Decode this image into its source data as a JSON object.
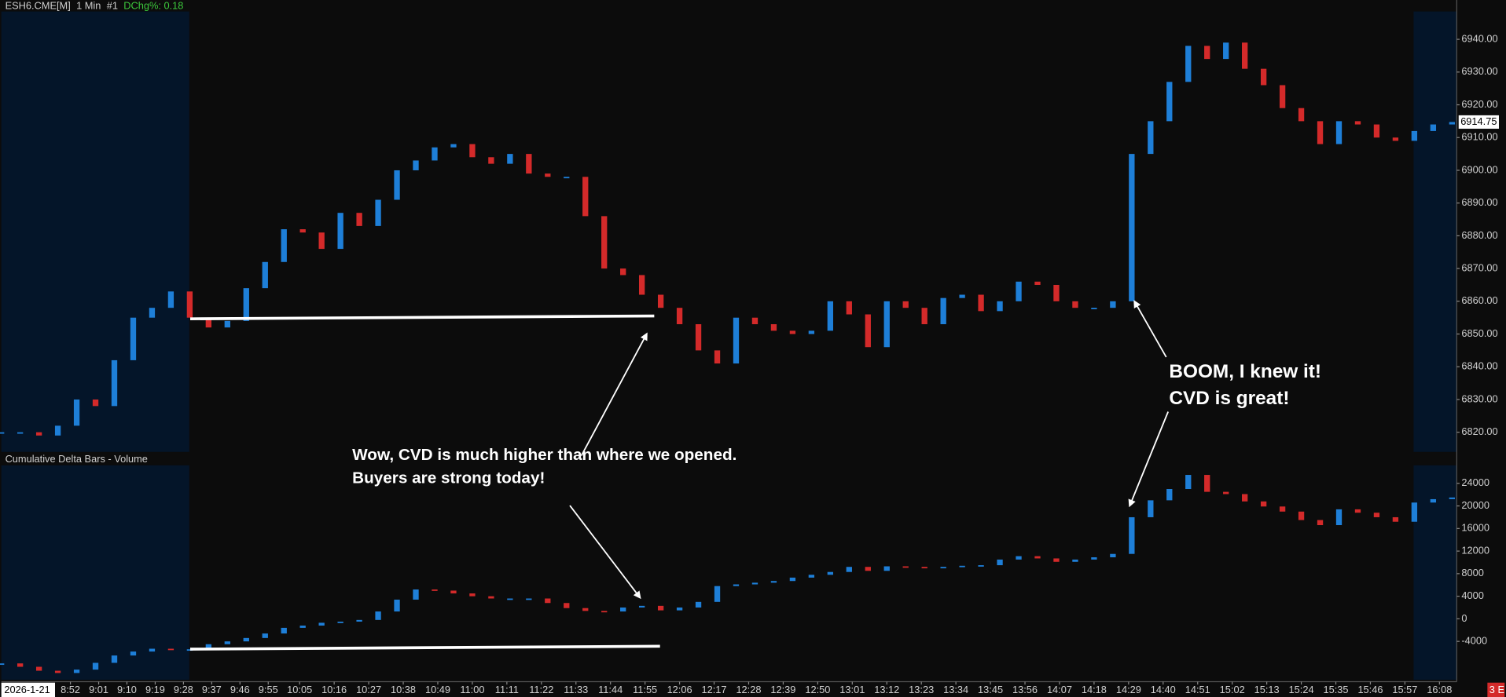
{
  "header": {
    "symbol": "ESH6.CME[M]",
    "interval": "1 Min",
    "chart_no": "#1",
    "change": "DChg%: 0.18",
    "corner": "3 E"
  },
  "annotations": [
    "Wow, CVD is much higher than where we opened.",
    "Buyers are strong today!",
    "BOOM, I knew it!",
    "CVD is great!"
  ],
  "chart_data": [
    {
      "type": "candlestick",
      "colors": {
        "up": "#1e7fd8",
        "down": "#d42a2a"
      },
      "grid": false,
      "x": [
        510,
        516,
        522,
        528,
        534,
        540,
        546,
        552,
        558,
        564,
        570,
        576,
        582,
        588,
        594,
        600,
        606,
        612,
        618,
        624,
        630,
        636,
        642,
        648,
        654,
        660,
        666,
        672,
        678,
        684,
        690,
        696,
        702,
        708,
        714,
        720,
        726,
        732,
        738,
        744,
        750,
        756,
        762,
        768,
        774,
        780,
        786,
        792,
        798,
        804,
        810,
        816,
        822,
        828,
        834,
        840,
        846,
        852,
        858,
        864,
        870,
        876,
        882,
        888,
        894,
        900,
        906,
        912,
        918,
        924,
        930,
        936,
        942,
        948,
        954,
        960,
        966,
        972
      ],
      "values": [
        6820,
        6820,
        6819,
        6822,
        6830,
        6828,
        6842,
        6855,
        6858,
        6863,
        6855,
        6852,
        6854,
        6864,
        6872,
        6882,
        6881,
        6876,
        6887,
        6883,
        6891,
        6900,
        6903,
        6907,
        6908,
        6904,
        6902,
        6905,
        6899,
        6898,
        6898,
        6886,
        6870,
        6868,
        6862,
        6858,
        6853,
        6845,
        6841,
        6855,
        6853,
        6851,
        6850,
        6851,
        6860,
        6856,
        6846,
        6860,
        6858,
        6853,
        6861,
        6862,
        6857,
        6860,
        6866,
        6865,
        6860,
        6858,
        6858,
        6860,
        6905,
        6915,
        6927,
        6938,
        6934,
        6939,
        6931,
        6926,
        6919,
        6915,
        6908,
        6915,
        6914,
        6910,
        6909,
        6912,
        6914,
        6914.75
      ],
      "ylim": [
        6814,
        6948.5
      ],
      "yticks": [
        {
          "value": 6820,
          "label": "6820.00"
        },
        {
          "value": 6830,
          "label": "6830.00"
        },
        {
          "value": 6840,
          "label": "6840.00"
        },
        {
          "value": 6850,
          "label": "6850.00"
        },
        {
          "value": 6860,
          "label": "6860.00"
        },
        {
          "value": 6870,
          "label": "6870.00"
        },
        {
          "value": 6880,
          "label": "6880.00"
        },
        {
          "value": 6890,
          "label": "6890.00"
        },
        {
          "value": 6900,
          "label": "6900.00"
        },
        {
          "value": 6910,
          "label": "6910.00"
        },
        {
          "value": 6920,
          "label": "6920.00"
        },
        {
          "value": 6930,
          "label": "6930.00"
        },
        {
          "value": 6940,
          "label": "6940.00"
        }
      ],
      "last_price": 6914.75,
      "xlim": [
        510,
        973.5
      ]
    },
    {
      "type": "candlestick",
      "title": "Cumulative Delta Bars - Volume",
      "colors": {
        "up": "#1e7fd8",
        "down": "#d42a2a"
      },
      "grid": false,
      "x": [
        510,
        516,
        522,
        528,
        534,
        540,
        546,
        552,
        558,
        564,
        570,
        576,
        582,
        588,
        594,
        600,
        606,
        612,
        618,
        624,
        630,
        636,
        642,
        648,
        654,
        660,
        666,
        672,
        678,
        684,
        690,
        696,
        702,
        708,
        714,
        720,
        726,
        732,
        738,
        744,
        750,
        756,
        762,
        768,
        774,
        780,
        786,
        792,
        798,
        804,
        810,
        816,
        822,
        828,
        834,
        840,
        846,
        852,
        858,
        864,
        870,
        876,
        882,
        888,
        894,
        900,
        906,
        912,
        918,
        924,
        930,
        936,
        942,
        948,
        954,
        960,
        966,
        972
      ],
      "values": [
        -7900,
        -8500,
        -9200,
        -9600,
        -9000,
        -7800,
        -6500,
        -5800,
        -5300,
        -5400,
        -5400,
        -4500,
        -4000,
        -3400,
        -2600,
        -1600,
        -1200,
        -700,
        -500,
        -200,
        1300,
        3400,
        5200,
        5000,
        4500,
        4000,
        3600,
        3600,
        3600,
        2800,
        1900,
        1400,
        1300,
        2000,
        2300,
        1500,
        2000,
        3000,
        5800,
        6100,
        6400,
        6700,
        7300,
        7800,
        8300,
        9200,
        8500,
        9300,
        9200,
        9000,
        9200,
        9400,
        9500,
        10500,
        11100,
        10700,
        10100,
        10500,
        10900,
        11500,
        18000,
        21000,
        23000,
        25500,
        22500,
        22100,
        20800,
        19900,
        19000,
        17500,
        16600,
        19400,
        18800,
        18000,
        17200,
        20600,
        21200,
        21500
      ],
      "ylim": [
        -10800,
        27200
      ],
      "yticks": [
        -4000,
        0,
        4000,
        8000,
        12000,
        16000,
        20000,
        24000
      ],
      "xlim": [
        510,
        973.5
      ],
      "date_label": "2026-1-21",
      "xticks": [
        {
          "value": 532,
          "label": "8:52"
        },
        {
          "value": 541,
          "label": "9:01"
        },
        {
          "value": 550,
          "label": "9:10"
        },
        {
          "value": 559,
          "label": "9:19"
        },
        {
          "value": 568,
          "label": "9:28"
        },
        {
          "value": 577,
          "label": "9:37"
        },
        {
          "value": 586,
          "label": "9:46"
        },
        {
          "value": 595,
          "label": "9:55"
        },
        {
          "value": 605,
          "label": "10:05"
        },
        {
          "value": 616,
          "label": "10:16"
        },
        {
          "value": 627,
          "label": "10:27"
        },
        {
          "value": 638,
          "label": "10:38"
        },
        {
          "value": 649,
          "label": "10:49"
        },
        {
          "value": 660,
          "label": "11:00"
        },
        {
          "value": 671,
          "label": "11:11"
        },
        {
          "value": 682,
          "label": "11:22"
        },
        {
          "value": 693,
          "label": "11:33"
        },
        {
          "value": 704,
          "label": "11:44"
        },
        {
          "value": 715,
          "label": "11:55"
        },
        {
          "value": 726,
          "label": "12:06"
        },
        {
          "value": 737,
          "label": "12:17"
        },
        {
          "value": 748,
          "label": "12:28"
        },
        {
          "value": 759,
          "label": "12:39"
        },
        {
          "value": 770,
          "label": "12:50"
        },
        {
          "value": 781,
          "label": "13:01"
        },
        {
          "value": 792,
          "label": "13:12"
        },
        {
          "value": 803,
          "label": "13:23"
        },
        {
          "value": 814,
          "label": "13:34"
        },
        {
          "value": 825,
          "label": "13:45"
        },
        {
          "value": 836,
          "label": "13:56"
        },
        {
          "value": 847,
          "label": "14:07"
        },
        {
          "value": 858,
          "label": "14:18"
        },
        {
          "value": 869,
          "label": "14:29"
        },
        {
          "value": 880,
          "label": "14:40"
        },
        {
          "value": 891,
          "label": "14:51"
        },
        {
          "value": 902,
          "label": "15:02"
        },
        {
          "value": 913,
          "label": "15:13"
        },
        {
          "value": 924,
          "label": "15:24"
        },
        {
          "value": 935,
          "label": "15:35"
        },
        {
          "value": 946,
          "label": "15:46"
        },
        {
          "value": 957,
          "label": "15:57"
        },
        {
          "value": 968,
          "label": "16:08"
        }
      ]
    }
  ]
}
